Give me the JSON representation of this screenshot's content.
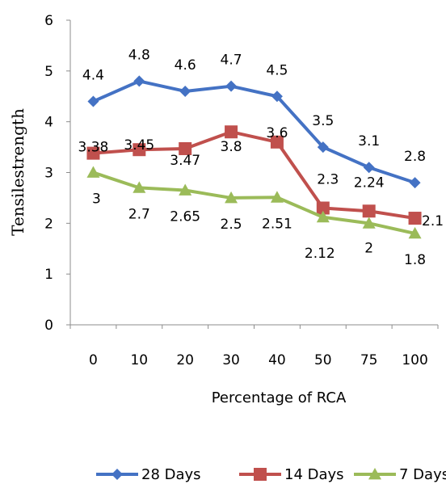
{
  "chart_data": {
    "type": "line",
    "title": "",
    "xlabel": "Percentage of RCA",
    "ylabel": "Tensilestrength",
    "categories": [
      "0",
      "10",
      "20",
      "30",
      "40",
      "50",
      "75",
      "100"
    ],
    "y_ticks": [
      "0",
      "1",
      "2",
      "3",
      "4",
      "5",
      "6"
    ],
    "ylim": [
      0,
      6
    ],
    "grid": false,
    "legend_position": "bottom",
    "series": [
      {
        "name": "28 Days",
        "color": "#4472C4",
        "marker": "diamond",
        "values": [
          4.4,
          4.8,
          4.6,
          4.7,
          4.5,
          3.5,
          3.1,
          2.8
        ],
        "labels": [
          "4.4",
          "4.8",
          "4.6",
          "4.7",
          "4.5",
          "3.5",
          "3.1",
          "2.8"
        ]
      },
      {
        "name": "14 Days",
        "color": "#C0504D",
        "marker": "square",
        "values": [
          3.38,
          3.45,
          3.47,
          3.8,
          3.6,
          2.3,
          2.24,
          2.1
        ],
        "labels": [
          "3.38",
          "3.45",
          "3.47",
          "3.8",
          "3.6",
          "2.3",
          "2.24",
          "2.1"
        ]
      },
      {
        "name": "7 Days",
        "color": "#9BBB59",
        "marker": "triangle",
        "values": [
          3,
          2.7,
          2.65,
          2.5,
          2.51,
          2.12,
          2,
          1.8
        ],
        "labels": [
          "3",
          "2.7",
          "2.65",
          "2.5",
          "2.51",
          "2.12",
          "2",
          "1.8"
        ]
      }
    ]
  }
}
